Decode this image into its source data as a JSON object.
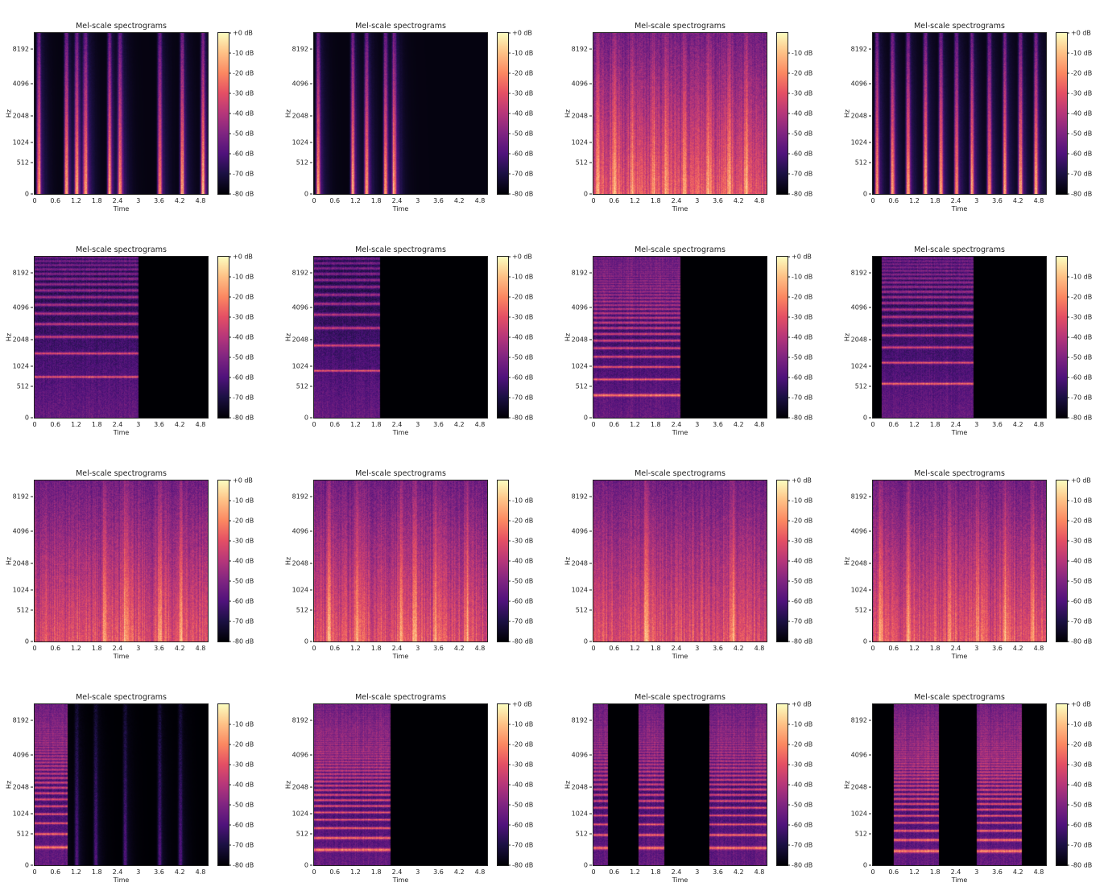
{
  "chart_data": {
    "type": "heatmap",
    "layout": "4x4 grid",
    "colormap": "magma",
    "common": {
      "title": "Mel-scale spectrograms",
      "xlabel": "Time",
      "ylabel": "Hz",
      "xlim": [
        0,
        5.01
      ],
      "x_ticks": [
        "0",
        "0.6",
        "1.2",
        "1.8",
        "2.4",
        "3",
        "3.6",
        "4.2",
        "4.8"
      ],
      "y_scale": "mel",
      "y_max_hz": 11025,
      "y_ticks": [
        "0",
        "512",
        "1024",
        "2048",
        "4096",
        "8192"
      ],
      "colorbar_range_db": [
        -80,
        0
      ],
      "colorbar_ticks": [
        "+0 dB",
        "-10 dB",
        "-20 dB",
        "-30 dB",
        "-40 dB",
        "-50 dB",
        "-60 dB",
        "-70 dB",
        "-80 dB"
      ]
    },
    "panels": [
      {
        "show_zero_db": true,
        "texture": "percussive",
        "segments": [],
        "events": [
          0.1,
          0.9,
          1.2,
          1.45,
          2.15,
          2.45,
          3.6,
          4.25,
          4.85
        ]
      },
      {
        "show_zero_db": true,
        "texture": "percussive",
        "segments": [],
        "events": [
          0.1,
          1.1,
          1.5,
          2.05,
          2.3
        ]
      },
      {
        "show_zero_db": false,
        "texture": "noisy",
        "segments": [
          [
            0,
            5.01
          ]
        ],
        "events": [
          0.1,
          0.6,
          1.1,
          1.7,
          2.1,
          2.6,
          3.3,
          3.9,
          4.4
        ]
      },
      {
        "show_zero_db": true,
        "texture": "percussive",
        "segments": [],
        "events": [
          0.1,
          0.55,
          1.0,
          1.5,
          1.95,
          2.4,
          2.85,
          3.35,
          3.8,
          4.25,
          4.7
        ]
      },
      {
        "show_zero_db": true,
        "texture": "harmonic",
        "segments": [
          [
            0,
            3.0
          ]
        ],
        "events": [
          0.2,
          0.4,
          0.55,
          0.8
        ],
        "f0_hz": 720
      },
      {
        "show_zero_db": true,
        "texture": "harmonic",
        "segments": [
          [
            0,
            1.9
          ]
        ],
        "events": [],
        "f0_hz": 880
      },
      {
        "show_zero_db": true,
        "texture": "harmonic",
        "segments": [
          [
            0,
            2.5
          ]
        ],
        "events": [
          0.3
        ],
        "f0_hz": 330
      },
      {
        "show_zero_db": false,
        "texture": "harmonic",
        "segments": [
          [
            0.25,
            2.9
          ]
        ],
        "events": [
          0.5,
          0.6,
          1.0
        ],
        "f0_hz": 560
      },
      {
        "show_zero_db": true,
        "texture": "noisy",
        "segments": [
          [
            0,
            5.01
          ]
        ],
        "events": [
          2.0,
          2.6,
          3.6,
          4.2
        ],
        "f0_hz": 320
      },
      {
        "show_zero_db": false,
        "texture": "noisy",
        "segments": [
          [
            0,
            5.01
          ]
        ],
        "events": [
          0.4,
          1.2,
          2.5,
          2.9,
          3.5,
          4.4
        ]
      },
      {
        "show_zero_db": true,
        "texture": "noisy",
        "segments": [
          [
            0,
            5.01
          ]
        ],
        "events": [
          1.5,
          4.0
        ]
      },
      {
        "show_zero_db": true,
        "texture": "noisy",
        "segments": [
          [
            0,
            5.01
          ]
        ],
        "events": [
          0.2,
          1.0,
          2.2,
          3.0,
          3.8,
          4.6
        ]
      },
      {
        "show_zero_db": false,
        "texture": "harmonic",
        "segments": [
          [
            0,
            0.95
          ]
        ],
        "events": [
          0.8,
          1.2,
          1.75,
          2.6,
          3.6,
          4.2
        ],
        "f0_hz": 250
      },
      {
        "show_zero_db": true,
        "texture": "harmonic",
        "segments": [
          [
            0,
            2.2
          ]
        ],
        "events": [],
        "f0_hz": 210
      },
      {
        "show_zero_db": true,
        "texture": "harmonic",
        "segments": [
          [
            0,
            0.4
          ],
          [
            1.3,
            2.05
          ],
          [
            3.35,
            5.01
          ]
        ],
        "events": [],
        "f0_hz": 240
      },
      {
        "show_zero_db": true,
        "texture": "harmonic",
        "segments": [
          [
            0.6,
            1.9
          ],
          [
            3.0,
            4.3
          ]
        ],
        "events": [],
        "f0_hz": 190
      }
    ]
  }
}
